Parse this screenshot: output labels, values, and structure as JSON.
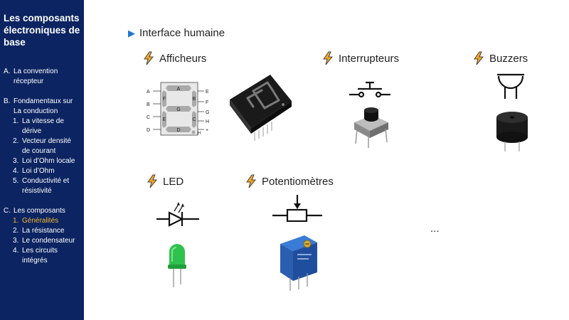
{
  "sidebar": {
    "title": "Les composants électroniques de base",
    "sections": [
      {
        "marker": "A.",
        "label": "La convention",
        "label2": "récepteur"
      },
      {
        "marker": "B.",
        "label": "Fondamentaux sur",
        "label2": "La conduction",
        "items": [
          {
            "marker": "1.",
            "label": "La vitesse de",
            "label2": "dérive"
          },
          {
            "marker": "2.",
            "label": "Vecteur densité",
            "label2": "de courant"
          },
          {
            "marker": "3.",
            "label": "Loi d’Ohm locale"
          },
          {
            "marker": "4.",
            "label": "Loi d’Ohm"
          },
          {
            "marker": "5.",
            "label": "Conductivité et",
            "label2": "résistivité"
          }
        ]
      },
      {
        "marker": "C.",
        "label": "Les composants",
        "items": [
          {
            "marker": "1.",
            "label": "Généralités",
            "active": true
          },
          {
            "marker": "2.",
            "label": "La résistance"
          },
          {
            "marker": "3.",
            "label": "Le condensateur"
          },
          {
            "marker": "4.",
            "label": "Les circuits",
            "label2": "intégrés"
          }
        ]
      }
    ]
  },
  "main": {
    "heading": "Interface humaine",
    "categories": {
      "afficheurs": "Afficheurs",
      "interrupteurs": "Interrupteurs",
      "buzzers": "Buzzers",
      "led": "LED",
      "potentiometres": "Potentiomètres"
    },
    "ellipsis": "...",
    "seven_segment_pins_left": [
      "A",
      "B",
      "C",
      "D"
    ],
    "seven_segment_pins_right": [
      "E",
      "F",
      "G",
      "H",
      "+"
    ],
    "seven_segment_labels": [
      "A",
      "B",
      "F",
      "G",
      "E",
      "C",
      "D",
      "H"
    ]
  },
  "colors": {
    "sidebar_bg": "#0c2461",
    "active": "#f5b82e",
    "bullet": "#1f77d0",
    "bolt": "#f5a623"
  }
}
